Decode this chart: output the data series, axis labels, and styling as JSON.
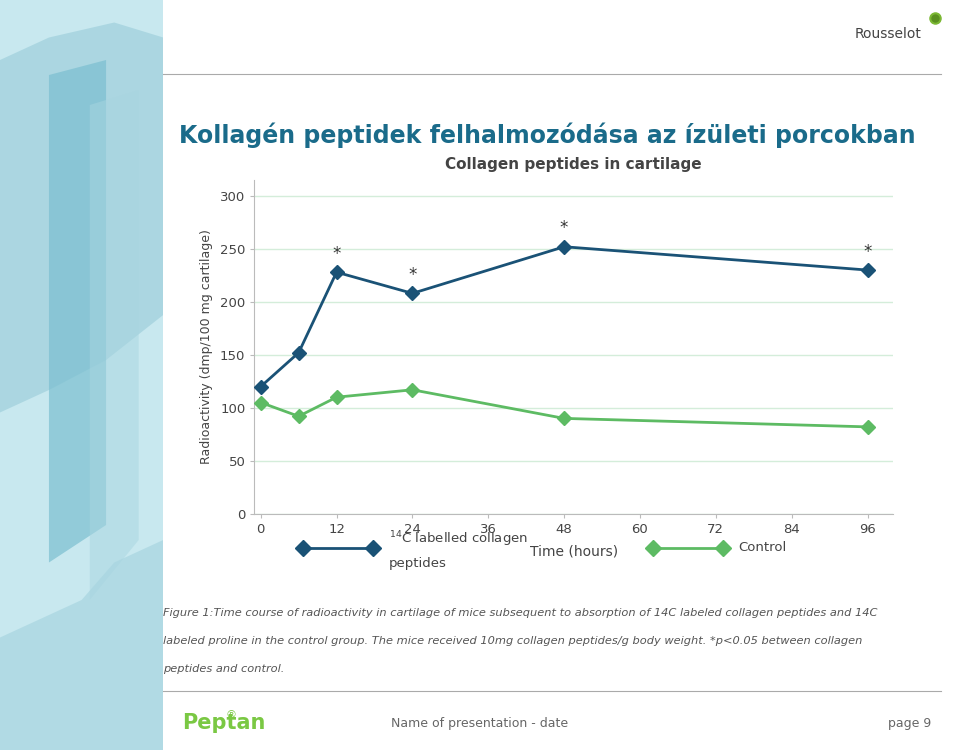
{
  "title_hungarian": "Kollagén peptidek felhalmozódása az ízületi porcokban",
  "chart_title": "Collagen peptides in cartilage",
  "xlabel": "Time (hours)",
  "ylabel": "Radioactivity (dmp/100 mg cartilage)",
  "x_values": [
    0,
    6,
    12,
    24,
    48,
    96
  ],
  "collagen_y": [
    120,
    152,
    228,
    208,
    252,
    230
  ],
  "control_y": [
    105,
    92,
    110,
    117,
    90,
    82
  ],
  "collagen_color": "#1a5276",
  "control_color": "#5dbb63",
  "collagen_label_line1": "$^{14}$C labelled collagen",
  "collagen_label_line2": "peptides",
  "control_label": "Control",
  "x_ticks": [
    0,
    12,
    24,
    36,
    48,
    60,
    72,
    84,
    96
  ],
  "y_ticks": [
    0,
    50,
    100,
    150,
    200,
    250,
    300
  ],
  "ylim": [
    0,
    315
  ],
  "xlim": [
    -1,
    100
  ],
  "star_positions_collagen": [
    [
      12,
      228
    ],
    [
      24,
      208
    ],
    [
      48,
      252
    ],
    [
      96,
      230
    ]
  ],
  "bg_color": "#ffffff",
  "grid_color": "#d4edda",
  "left_strip_light": "#c8e8ef",
  "left_strip_mid": "#a8d5e0",
  "left_strip_dark": "#7bbfd0",
  "title_color": "#1a6b8a",
  "figure_caption_line1": "Figure 1:Time course of radioactivity in cartilage of mice subsequent to absorption of 14C labeled collagen peptides and 14C",
  "figure_caption_line2": "labeled proline in the control group. The mice received 10mg collagen peptides/g body weight. *p<0.05 between collagen",
  "figure_caption_line3": "peptides and control.",
  "footer_left": "Peptan",
  "footer_center": "Name of presentation - date",
  "footer_right": "page 9",
  "rousselot_text": "Rousselot"
}
